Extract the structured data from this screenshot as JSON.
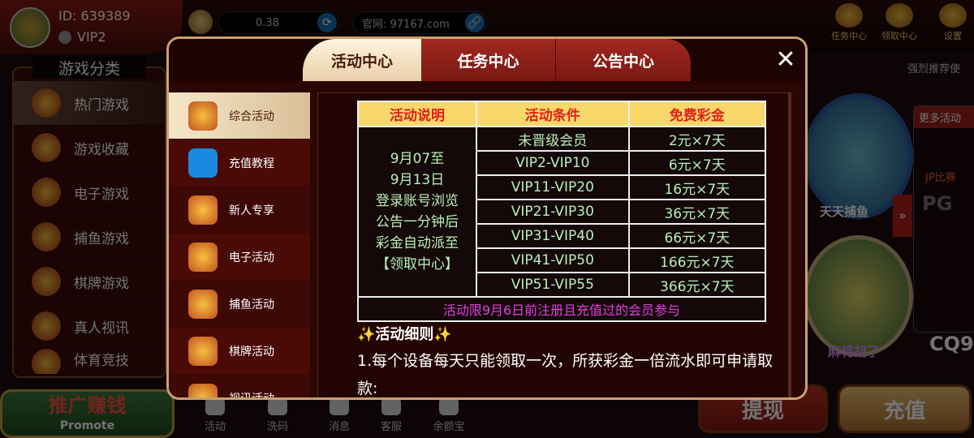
{
  "header": {
    "user_id": "ID: 639389",
    "vip": "VIP2",
    "balance": "0.38",
    "website": "官网: 97167.com",
    "icons": [
      {
        "label": "任务中心"
      },
      {
        "label": "领取中心"
      },
      {
        "label": "设置"
      }
    ],
    "recommend": "强烈推荐使"
  },
  "categories": {
    "title": "游戏分类",
    "items": [
      "热门游戏",
      "游戏收藏",
      "电子游戏",
      "捕鱼游戏",
      "棋牌游戏",
      "真人视讯",
      "体育竞技"
    ]
  },
  "games": {
    "fish": "天天捕鱼",
    "mahjong": "麻将胡了",
    "more": "更多活动",
    "jp": "JP比赛",
    "pg": "PG",
    "cq": "CQ9"
  },
  "bottom": {
    "promote": "推广赚钱",
    "promote_en": "Promote",
    "nav": [
      "活动",
      "洗码",
      "消息",
      "客服",
      "余额宝"
    ],
    "withdraw": "提现",
    "deposit": "充值"
  },
  "modal": {
    "tabs": [
      "活动中心",
      "任务中心",
      "公告中心"
    ],
    "close": "✕",
    "menu": [
      "综合活动",
      "充值教程",
      "新人专享",
      "电子活动",
      "捕鱼活动",
      "棋牌活动",
      "视讯活动"
    ],
    "table": {
      "headers": [
        "活动说明",
        "活动条件",
        "免费彩金"
      ],
      "description": [
        "9月07至",
        "9月13日",
        "登录账号浏览",
        "公告一分钟后",
        "彩金自动派至",
        "【领取中心】"
      ],
      "rows": [
        [
          "未晋级会员",
          "2元×7天"
        ],
        [
          "VIP2-VIP10",
          "6元×7天"
        ],
        [
          "VIP11-VIP20",
          "16元×7天"
        ],
        [
          "VIP21-VIP30",
          "36元×7天"
        ],
        [
          "VIP31-VIP40",
          "66元×7天"
        ],
        [
          "VIP41-VIP50",
          "166元×7天"
        ],
        [
          "VIP51-VIP55",
          "366元×7天"
        ]
      ],
      "note": "活动限9月6日前注册且充值过的会员参与"
    },
    "rules_title": "✨活动细则✨",
    "rules_text": "1.每个设备每天只能领取一次，所获彩金一倍流水即可申请取款:"
  },
  "colors": {
    "header_bg": "#f8d86a",
    "header_text": "#e0201a",
    "cell_text": "#b8f0b8",
    "note": "#e040e0"
  }
}
